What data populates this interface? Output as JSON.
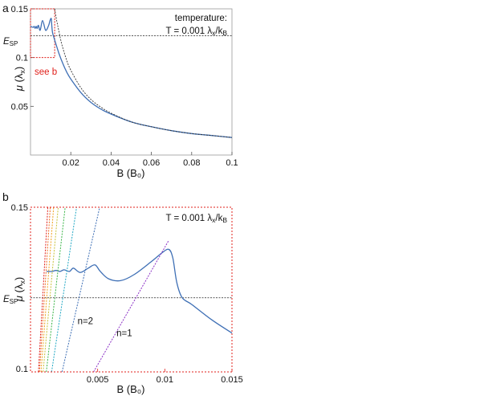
{
  "chart_data": [
    {
      "panel_label": "a",
      "type": "line",
      "xlabel": "B (B₀)",
      "ylabel_sym": "μ",
      "ylabel_unit": "(λ",
      "ylabel_sub": "x",
      "ylabel_close": ")",
      "xlim": [
        0,
        0.1
      ],
      "ylim": [
        0.0,
        0.15
      ],
      "xticks": [
        {
          "v": 0.02,
          "label": "0.02"
        },
        {
          "v": 0.04,
          "label": "0.04"
        },
        {
          "v": 0.06,
          "label": "0.06"
        },
        {
          "v": 0.08,
          "label": "0.08"
        },
        {
          "v": 0.1,
          "label": "0.1"
        }
      ],
      "yticks": [
        {
          "v": 0.05,
          "label": "0.05"
        },
        {
          "v": 0.1,
          "label": "0.1"
        },
        {
          "v": 0.15,
          "label": "0.15"
        }
      ],
      "esp": {
        "value": 0.1225,
        "label": "E",
        "sub": "SP"
      },
      "annotation": {
        "line1": "temperature:",
        "line2": "T = 0.001 λ",
        "sub1": "x",
        "mid": "/k",
        "sub2": "B"
      },
      "inset_box": {
        "x": [
          0.0,
          0.012
        ],
        "y": [
          0.1,
          0.15
        ],
        "label": "see b"
      },
      "series": [
        {
          "role": "mu",
          "color": "#3e6fb5",
          "x": [
            0.0,
            0.0013,
            0.0018,
            0.0023,
            0.0028,
            0.0033,
            0.0039,
            0.0048,
            0.006,
            0.0075,
            0.009,
            0.0097,
            0.0103,
            0.0106,
            0.011,
            0.012,
            0.014,
            0.016,
            0.018,
            0.02,
            0.025,
            0.03,
            0.035,
            0.04,
            0.05,
            0.06,
            0.07,
            0.08,
            0.09,
            0.1
          ],
          "y": [
            0.132,
            0.131,
            0.132,
            0.13,
            0.132,
            0.13,
            0.133,
            0.128,
            0.138,
            0.128,
            0.133,
            0.138,
            0.14,
            0.132,
            0.125,
            0.118,
            0.105,
            0.094,
            0.085,
            0.078,
            0.064,
            0.054,
            0.047,
            0.042,
            0.034,
            0.029,
            0.025,
            0.022,
            0.02,
            0.018
          ]
        },
        {
          "role": "envelope",
          "color": "#333333",
          "x": [
            0.012,
            0.013,
            0.014,
            0.015,
            0.016,
            0.018,
            0.02,
            0.025,
            0.03,
            0.035,
            0.04,
            0.05,
            0.06,
            0.07,
            0.08,
            0.09,
            0.1
          ],
          "y": [
            0.15,
            0.138,
            0.128,
            0.118,
            0.11,
            0.097,
            0.087,
            0.069,
            0.057,
            0.049,
            0.043,
            0.034,
            0.029,
            0.025,
            0.022,
            0.02,
            0.018
          ]
        }
      ]
    },
    {
      "panel_label": "b",
      "type": "line",
      "xlabel": "B (B₀)",
      "ylabel_sym": "μ",
      "ylabel_unit": "(λ",
      "ylabel_sub": "x",
      "ylabel_close": ")",
      "xlim": [
        0,
        0.015
      ],
      "ylim": [
        0.1,
        0.15
      ],
      "xticks": [
        {
          "v": 0.005,
          "label": "0.005"
        },
        {
          "v": 0.01,
          "label": "0.01"
        },
        {
          "v": 0.015,
          "label": "0.015"
        }
      ],
      "yticks": [
        {
          "v": 0.1,
          "label": "0.1"
        },
        {
          "v": 0.15,
          "label": "0.15"
        }
      ],
      "esp": {
        "value": 0.1225,
        "label": "E",
        "sub": "SP"
      },
      "annotation": {
        "line2": "T = 0.001 λ",
        "sub1": "x",
        "mid": "/k",
        "sub2": "B"
      },
      "level_labels": [
        {
          "text": "n=2",
          "x": 0.0035,
          "y": 0.1145,
          "color": "#3e6fb5"
        },
        {
          "text": "n=1",
          "x": 0.0064,
          "y": 0.1108,
          "color": "#8a2fc5"
        }
      ],
      "series": [
        {
          "role": "mu",
          "color": "#3e6fb5",
          "x": [
            0.0012,
            0.0016,
            0.0019,
            0.0022,
            0.0025,
            0.0029,
            0.0032,
            0.0037,
            0.0043,
            0.0048,
            0.0052,
            0.0058,
            0.0067,
            0.0077,
            0.009,
            0.0098,
            0.0103,
            0.0106,
            0.0109,
            0.0113,
            0.012,
            0.0135,
            0.015
          ],
          "y": [
            0.1305,
            0.1305,
            0.1308,
            0.1305,
            0.131,
            0.1305,
            0.1315,
            0.1302,
            0.1315,
            0.1325,
            0.1305,
            0.1283,
            0.1277,
            0.1295,
            0.1335,
            0.1362,
            0.1372,
            0.1345,
            0.127,
            0.1225,
            0.1205,
            0.1158,
            0.1118
          ]
        },
        {
          "role": "level",
          "name": "n=1",
          "color": "#8a2fc5",
          "x": [
            0.0047,
            0.0103
          ],
          "y": [
            0.1,
            0.14
          ]
        },
        {
          "role": "level",
          "name": "n=2",
          "color": "#3e6fb5",
          "x": [
            0.00235,
            0.00515
          ],
          "y": [
            0.1,
            0.15
          ]
        },
        {
          "role": "level",
          "color": "#22a8c4",
          "x": [
            0.00157,
            0.00343
          ],
          "y": [
            0.1,
            0.15
          ]
        },
        {
          "role": "level",
          "color": "#3ab548",
          "x": [
            0.00118,
            0.00258
          ],
          "y": [
            0.1,
            0.15
          ]
        },
        {
          "role": "level",
          "color": "#c7c23a",
          "x": [
            0.00094,
            0.00206
          ],
          "y": [
            0.1,
            0.15
          ]
        },
        {
          "role": "level",
          "color": "#f0a21c",
          "x": [
            0.00078,
            0.00172
          ],
          "y": [
            0.1,
            0.15
          ]
        },
        {
          "role": "level",
          "color": "#ef6b1f",
          "x": [
            0.00067,
            0.00147
          ],
          "y": [
            0.1,
            0.15
          ]
        },
        {
          "role": "level",
          "color": "#e0201b",
          "x": [
            0.00059,
            0.00129
          ],
          "y": [
            0.1,
            0.15
          ]
        }
      ]
    }
  ]
}
